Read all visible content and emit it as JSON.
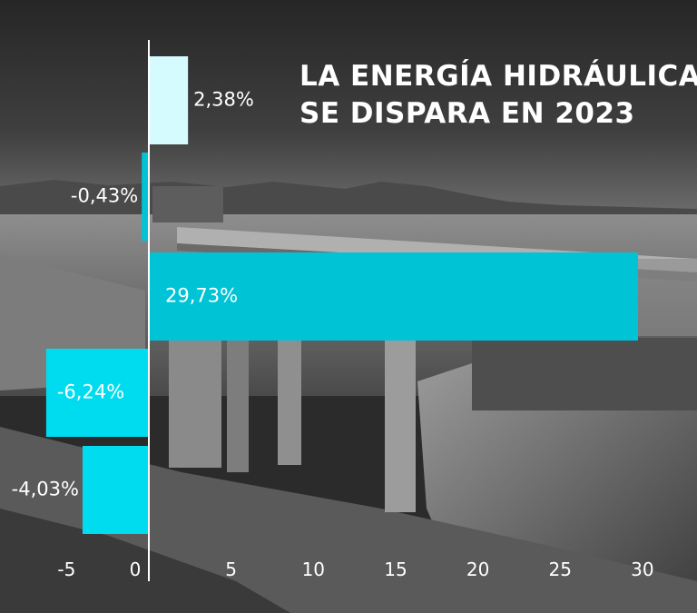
{
  "title": {
    "line1": "LA ENERGÍA HIDRÁULICA",
    "line2": "SE DISPARA EN 2023"
  },
  "colors": {
    "bar_main": "#00c4d6",
    "bar_negative": "#00dcef",
    "bar_light": "#d6fbff",
    "axis": "#ffffff",
    "text": "#ffffff"
  },
  "chart_data": {
    "type": "bar",
    "orientation": "horizontal",
    "series": [
      {
        "values": [
          2.38,
          -0.43,
          29.73,
          -6.24,
          -4.03
        ],
        "labels": [
          "2,38%",
          "-0,43%",
          "29,73%",
          "-6,24%",
          "-4,03%"
        ]
      }
    ],
    "xlim": [
      -5,
      30
    ],
    "x_ticks": [
      -5,
      0,
      5,
      10,
      15,
      20,
      25,
      30
    ],
    "x_tick_labels": [
      "-5",
      "0",
      "5",
      "10",
      "15",
      "20",
      "25",
      "30"
    ],
    "title": "LA ENERGÍA HIDRÁULICA SE DISPARA EN 2023",
    "xlabel": "",
    "ylabel": "",
    "grid": false,
    "legend": "none"
  }
}
